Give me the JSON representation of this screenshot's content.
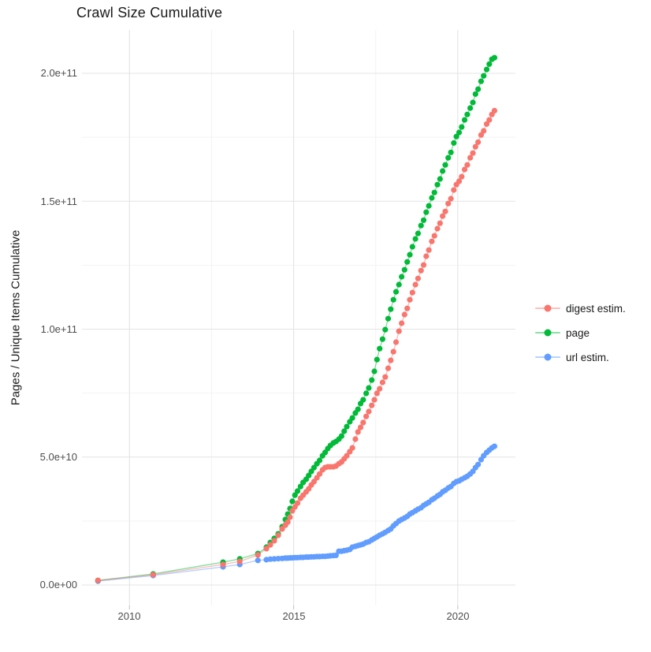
{
  "title": "Crawl Size Cumulative",
  "y_axis": {
    "label": "Pages / Unique Items Cumulative",
    "ticks": [
      "0.0e+00",
      "5.0e+10",
      "1.0e+11",
      "1.5e+11",
      "2.0e+11"
    ]
  },
  "x_axis": {
    "ticks": [
      "2010",
      "2015",
      "2020"
    ]
  },
  "legend": {
    "items": [
      {
        "label": "digest estim.",
        "color": "#F8766D"
      },
      {
        "label": "page",
        "color": "#00BA38"
      },
      {
        "label": "url estim.",
        "color": "#619CFF"
      }
    ]
  },
  "chart_data": {
    "type": "scatter",
    "title": "Crawl Size Cumulative",
    "xlabel": "",
    "ylabel": "Pages / Unique Items Cumulative",
    "value_unit": "items, stored in billions (1e9)",
    "x_major_ticks": [
      2010,
      2015,
      2020
    ],
    "x_minor_ticks": [
      2012.5,
      2017.5
    ],
    "y_major_ticks_e9": [
      0,
      50,
      100,
      150,
      200
    ],
    "y_minor_ticks_e9": [
      25,
      75,
      125,
      175
    ],
    "y_tick_labels": [
      "0.0e+00",
      "5.0e+10",
      "1.0e+11",
      "1.5e+11",
      "2.0e+11"
    ],
    "xlim": [
      2008.55,
      2021.75
    ],
    "ylim_e9": [
      0,
      217
    ],
    "grid": "major+minor, light gray on white",
    "legend_position": "right",
    "series": [
      {
        "name": "digest estim.",
        "color": "#F8766D",
        "points": [
          [
            2009.04,
            1.8
          ],
          [
            2010.72,
            4.0
          ],
          [
            2012.85,
            8.0
          ],
          [
            2013.36,
            9.2
          ],
          [
            2013.91,
            11.7
          ],
          [
            2014.17,
            14.2
          ],
          [
            2014.29,
            15.7
          ],
          [
            2014.41,
            17.3
          ],
          [
            2014.53,
            19.4
          ],
          [
            2014.65,
            21.9
          ],
          [
            2014.75,
            23.4
          ],
          [
            2014.82,
            24.6
          ],
          [
            2014.89,
            26.5
          ],
          [
            2014.96,
            29.0
          ],
          [
            2015.04,
            30.5
          ],
          [
            2015.12,
            32.0
          ],
          [
            2015.21,
            33.9
          ],
          [
            2015.29,
            35.1
          ],
          [
            2015.38,
            36.4
          ],
          [
            2015.46,
            37.6
          ],
          [
            2015.54,
            39.1
          ],
          [
            2015.62,
            40.4
          ],
          [
            2015.71,
            41.9
          ],
          [
            2015.79,
            43.4
          ],
          [
            2015.88,
            45.0
          ],
          [
            2015.96,
            45.9
          ],
          [
            2016.04,
            46.2
          ],
          [
            2016.12,
            46.2
          ],
          [
            2016.21,
            46.2
          ],
          [
            2016.29,
            46.5
          ],
          [
            2016.38,
            47.4
          ],
          [
            2016.46,
            48.1
          ],
          [
            2016.54,
            49.3
          ],
          [
            2016.62,
            50.5
          ],
          [
            2016.71,
            52.1
          ],
          [
            2016.79,
            53.6
          ],
          [
            2016.88,
            57.0
          ],
          [
            2016.96,
            59.8
          ],
          [
            2017.04,
            61.6
          ],
          [
            2017.12,
            63.5
          ],
          [
            2017.21,
            65.9
          ],
          [
            2017.29,
            67.8
          ],
          [
            2017.38,
            70.2
          ],
          [
            2017.46,
            72.4
          ],
          [
            2017.54,
            74.9
          ],
          [
            2017.62,
            76.7
          ],
          [
            2017.71,
            79.2
          ],
          [
            2017.79,
            81.3
          ],
          [
            2017.88,
            84.7
          ],
          [
            2017.96,
            87.8
          ],
          [
            2018.04,
            91.2
          ],
          [
            2018.12,
            94.9
          ],
          [
            2018.21,
            99.2
          ],
          [
            2018.29,
            102.3
          ],
          [
            2018.38,
            105.7
          ],
          [
            2018.46,
            108.1
          ],
          [
            2018.54,
            111.5
          ],
          [
            2018.62,
            114.3
          ],
          [
            2018.71,
            117.4
          ],
          [
            2018.79,
            119.8
          ],
          [
            2018.88,
            122.9
          ],
          [
            2018.96,
            125.1
          ],
          [
            2019.04,
            128.5
          ],
          [
            2019.12,
            130.9
          ],
          [
            2019.21,
            134.3
          ],
          [
            2019.29,
            136.5
          ],
          [
            2019.38,
            139.3
          ],
          [
            2019.46,
            141.4
          ],
          [
            2019.54,
            144.2
          ],
          [
            2019.62,
            146.0
          ],
          [
            2019.71,
            149.1
          ],
          [
            2019.79,
            151.0
          ],
          [
            2019.88,
            154.4
          ],
          [
            2019.96,
            156.5
          ],
          [
            2020.04,
            157.8
          ],
          [
            2020.12,
            159.6
          ],
          [
            2020.21,
            162.4
          ],
          [
            2020.29,
            164.2
          ],
          [
            2020.38,
            167.0
          ],
          [
            2020.46,
            168.8
          ],
          [
            2020.54,
            171.3
          ],
          [
            2020.62,
            173.1
          ],
          [
            2020.71,
            175.9
          ],
          [
            2020.79,
            177.5
          ],
          [
            2020.88,
            180.2
          ],
          [
            2020.96,
            181.8
          ],
          [
            2021.04,
            183.9
          ],
          [
            2021.12,
            185.4
          ]
        ]
      },
      {
        "name": "page",
        "color": "#00BA38",
        "points": [
          [
            2009.04,
            1.8
          ],
          [
            2010.72,
            4.3
          ],
          [
            2012.85,
            8.9
          ],
          [
            2013.36,
            10.2
          ],
          [
            2013.91,
            12.3
          ],
          [
            2014.17,
            14.8
          ],
          [
            2014.29,
            16.6
          ],
          [
            2014.41,
            18.2
          ],
          [
            2014.53,
            20.0
          ],
          [
            2014.65,
            22.8
          ],
          [
            2014.75,
            25.6
          ],
          [
            2014.82,
            27.7
          ],
          [
            2014.89,
            29.9
          ],
          [
            2014.96,
            32.7
          ],
          [
            2015.04,
            35.1
          ],
          [
            2015.12,
            36.7
          ],
          [
            2015.21,
            38.5
          ],
          [
            2015.29,
            40.1
          ],
          [
            2015.38,
            41.3
          ],
          [
            2015.46,
            42.8
          ],
          [
            2015.54,
            44.4
          ],
          [
            2015.62,
            45.9
          ],
          [
            2015.71,
            47.4
          ],
          [
            2015.79,
            48.7
          ],
          [
            2015.88,
            50.5
          ],
          [
            2015.96,
            51.8
          ],
          [
            2016.04,
            53.3
          ],
          [
            2016.12,
            54.5
          ],
          [
            2016.21,
            55.5
          ],
          [
            2016.29,
            56.1
          ],
          [
            2016.38,
            57.0
          ],
          [
            2016.46,
            58.2
          ],
          [
            2016.54,
            60.1
          ],
          [
            2016.62,
            61.9
          ],
          [
            2016.71,
            63.8
          ],
          [
            2016.79,
            65.3
          ],
          [
            2016.88,
            67.2
          ],
          [
            2016.96,
            68.7
          ],
          [
            2017.04,
            70.9
          ],
          [
            2017.12,
            72.4
          ],
          [
            2017.21,
            74.9
          ],
          [
            2017.29,
            77.0
          ],
          [
            2017.38,
            80.1
          ],
          [
            2017.46,
            83.5
          ],
          [
            2017.54,
            88.1
          ],
          [
            2017.62,
            92.4
          ],
          [
            2017.71,
            96.1
          ],
          [
            2017.79,
            99.8
          ],
          [
            2017.88,
            104.1
          ],
          [
            2017.96,
            107.8
          ],
          [
            2018.04,
            111.5
          ],
          [
            2018.12,
            114.6
          ],
          [
            2018.21,
            117.4
          ],
          [
            2018.29,
            120.5
          ],
          [
            2018.38,
            123.2
          ],
          [
            2018.46,
            126.3
          ],
          [
            2018.54,
            129.1
          ],
          [
            2018.62,
            132.2
          ],
          [
            2018.71,
            135.3
          ],
          [
            2018.79,
            137.4
          ],
          [
            2018.88,
            140.5
          ],
          [
            2018.96,
            142.6
          ],
          [
            2019.04,
            145.7
          ],
          [
            2019.12,
            148.2
          ],
          [
            2019.21,
            151.3
          ],
          [
            2019.29,
            153.4
          ],
          [
            2019.38,
            156.5
          ],
          [
            2019.46,
            158.7
          ],
          [
            2019.54,
            161.8
          ],
          [
            2019.62,
            164.2
          ],
          [
            2019.71,
            167.0
          ],
          [
            2019.79,
            169.1
          ],
          [
            2019.88,
            172.8
          ],
          [
            2019.96,
            175.3
          ],
          [
            2020.04,
            176.9
          ],
          [
            2020.12,
            179.0
          ],
          [
            2020.21,
            181.8
          ],
          [
            2020.29,
            183.9
          ],
          [
            2020.38,
            186.4
          ],
          [
            2020.46,
            188.6
          ],
          [
            2020.54,
            191.9
          ],
          [
            2020.62,
            193.8
          ],
          [
            2020.71,
            196.9
          ],
          [
            2020.79,
            199.0
          ],
          [
            2020.88,
            201.5
          ],
          [
            2020.96,
            203.6
          ],
          [
            2021.04,
            205.5
          ],
          [
            2021.12,
            206.1
          ]
        ]
      },
      {
        "name": "url estim.",
        "color": "#619CFF",
        "points": [
          [
            2009.04,
            1.5
          ],
          [
            2010.72,
            3.7
          ],
          [
            2012.85,
            7.1
          ],
          [
            2013.36,
            8.0
          ],
          [
            2013.91,
            9.6
          ],
          [
            2014.17,
            9.9
          ],
          [
            2014.29,
            10.1
          ],
          [
            2014.41,
            10.2
          ],
          [
            2014.53,
            10.3
          ],
          [
            2014.65,
            10.4
          ],
          [
            2014.75,
            10.5
          ],
          [
            2014.82,
            10.5
          ],
          [
            2014.89,
            10.6
          ],
          [
            2014.96,
            10.6
          ],
          [
            2015.04,
            10.7
          ],
          [
            2015.12,
            10.7
          ],
          [
            2015.21,
            10.8
          ],
          [
            2015.29,
            10.8
          ],
          [
            2015.38,
            10.9
          ],
          [
            2015.46,
            10.9
          ],
          [
            2015.54,
            11.0
          ],
          [
            2015.62,
            11.0
          ],
          [
            2015.71,
            11.1
          ],
          [
            2015.79,
            11.1
          ],
          [
            2015.88,
            11.2
          ],
          [
            2015.96,
            11.2
          ],
          [
            2016.04,
            11.3
          ],
          [
            2016.12,
            11.4
          ],
          [
            2016.21,
            11.5
          ],
          [
            2016.29,
            11.6
          ],
          [
            2016.38,
            13.2
          ],
          [
            2016.46,
            13.2
          ],
          [
            2016.54,
            13.4
          ],
          [
            2016.62,
            13.6
          ],
          [
            2016.71,
            13.9
          ],
          [
            2016.79,
            14.8
          ],
          [
            2016.88,
            15.1
          ],
          [
            2016.96,
            15.4
          ],
          [
            2017.04,
            15.7
          ],
          [
            2017.12,
            16.0
          ],
          [
            2017.21,
            16.6
          ],
          [
            2017.29,
            16.9
          ],
          [
            2017.38,
            17.6
          ],
          [
            2017.46,
            18.2
          ],
          [
            2017.54,
            18.8
          ],
          [
            2017.62,
            19.4
          ],
          [
            2017.71,
            20.0
          ],
          [
            2017.79,
            20.6
          ],
          [
            2017.88,
            21.3
          ],
          [
            2017.96,
            21.9
          ],
          [
            2018.04,
            23.1
          ],
          [
            2018.12,
            24.0
          ],
          [
            2018.21,
            25.0
          ],
          [
            2018.29,
            25.6
          ],
          [
            2018.38,
            26.2
          ],
          [
            2018.46,
            26.8
          ],
          [
            2018.54,
            27.7
          ],
          [
            2018.62,
            28.3
          ],
          [
            2018.71,
            29.0
          ],
          [
            2018.79,
            29.6
          ],
          [
            2018.88,
            30.2
          ],
          [
            2018.96,
            31.1
          ],
          [
            2019.04,
            31.7
          ],
          [
            2019.12,
            32.3
          ],
          [
            2019.21,
            33.3
          ],
          [
            2019.29,
            33.9
          ],
          [
            2019.38,
            34.8
          ],
          [
            2019.46,
            35.4
          ],
          [
            2019.54,
            36.4
          ],
          [
            2019.62,
            37.0
          ],
          [
            2019.71,
            37.9
          ],
          [
            2019.79,
            38.5
          ],
          [
            2019.88,
            39.7
          ],
          [
            2019.96,
            40.4
          ],
          [
            2020.04,
            40.7
          ],
          [
            2020.12,
            41.3
          ],
          [
            2020.21,
            41.9
          ],
          [
            2020.29,
            42.5
          ],
          [
            2020.38,
            43.4
          ],
          [
            2020.46,
            44.4
          ],
          [
            2020.54,
            45.9
          ],
          [
            2020.62,
            47.1
          ],
          [
            2020.71,
            49.0
          ],
          [
            2020.79,
            50.5
          ],
          [
            2020.88,
            51.8
          ],
          [
            2020.96,
            52.7
          ],
          [
            2021.04,
            53.6
          ],
          [
            2021.12,
            54.2
          ]
        ]
      }
    ]
  }
}
